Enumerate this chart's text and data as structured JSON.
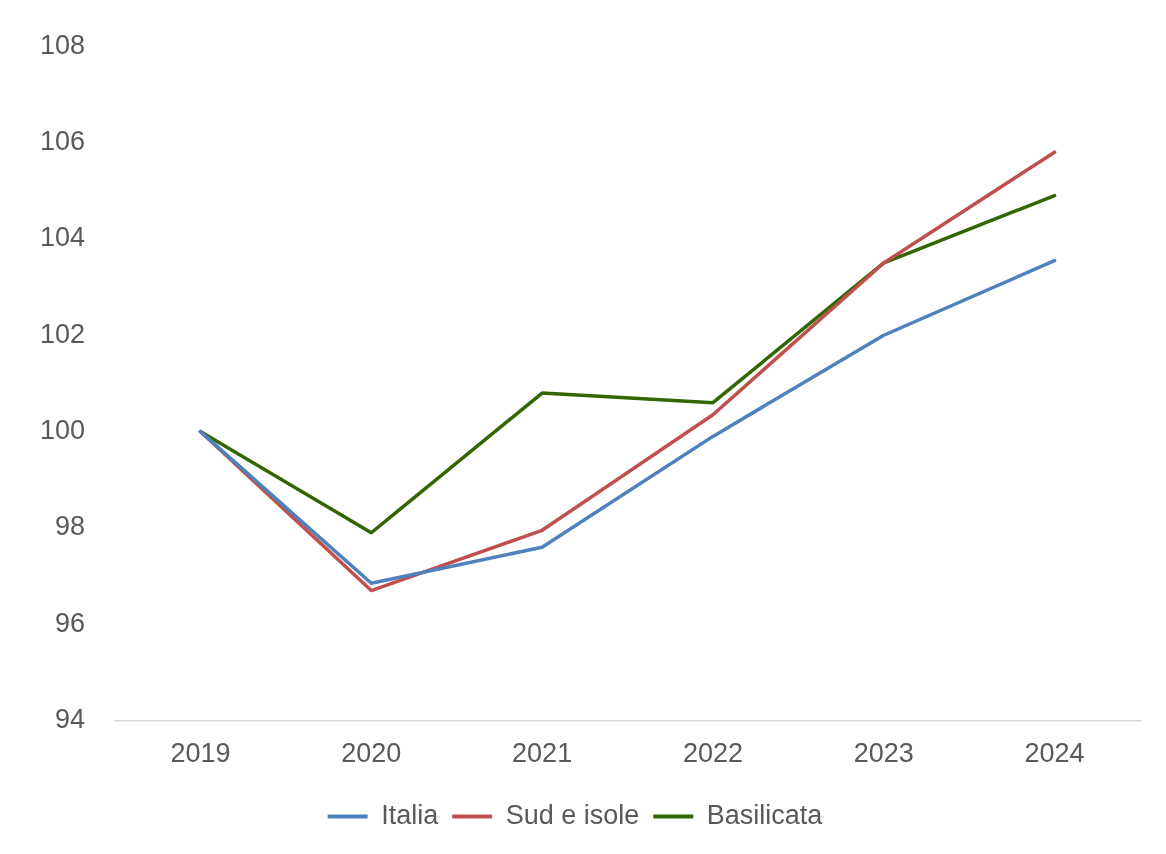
{
  "chart_data": {
    "type": "line",
    "categories": [
      "2019",
      "2020",
      "2021",
      "2022",
      "2023",
      "2024"
    ],
    "series": [
      {
        "name": "Italia",
        "color": "#4f81bd",
        "values": [
          100,
          96.85,
          97.6,
          99.9,
          102.0,
          103.55
        ]
      },
      {
        "name": "Sud e isole",
        "color": "#c0504d",
        "values": [
          100,
          96.7,
          97.95,
          100.35,
          103.5,
          105.8
        ]
      },
      {
        "name": "Basilicata",
        "color": "#336600",
        "values": [
          100,
          97.9,
          100.8,
          100.6,
          103.5,
          104.9
        ]
      }
    ],
    "ylim": [
      94,
      108
    ],
    "yticks": [
      94,
      96,
      98,
      100,
      102,
      104,
      106,
      108
    ],
    "grid": false,
    "legend": "bottom",
    "marker": "none",
    "line_style": "solid"
  }
}
